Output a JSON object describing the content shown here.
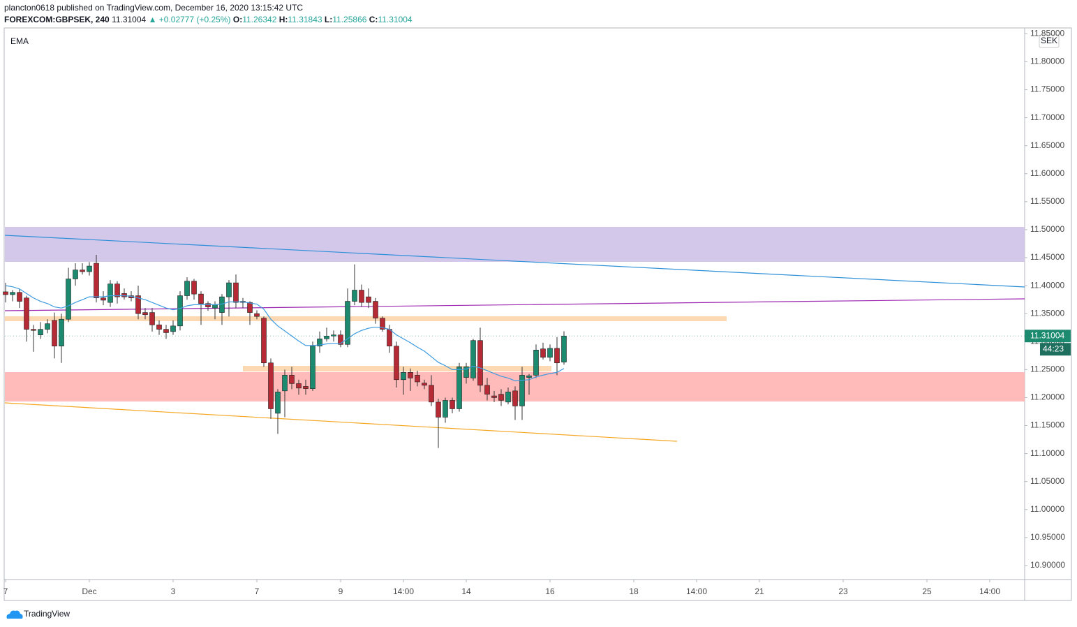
{
  "header": {
    "published": "plancton0618 published on TradingView.com, December 16, 2020 13:15:42 UTC",
    "symbol": "FOREXCOM:GBPSEK, 240",
    "change": "▲ +0.02777 (+0.25%)",
    "o": "O:",
    "h": "H:",
    "l": "L:",
    "c": "C:"
  },
  "indicator": "EMA",
  "currency": "SEK",
  "countdown": "44:23",
  "brand": "TradingView",
  "chart_data": {
    "type": "candlestick",
    "up_color": "#1b8a6f",
    "down_color": "#b52a34",
    "ema_color": "#3d9be0",
    "ylim": [
      10.875,
      11.8604
    ],
    "yticks": [
      {
        "value": 11.85,
        "label": "11.85000"
      },
      {
        "value": 11.8,
        "label": "11.80000"
      },
      {
        "value": 11.75,
        "label": "11.75000"
      },
      {
        "value": 11.7,
        "label": "11.70000"
      },
      {
        "value": 11.65,
        "label": "11.65000"
      },
      {
        "value": 11.6,
        "label": "11.60000"
      },
      {
        "value": 11.55,
        "label": "11.55000"
      },
      {
        "value": 11.5,
        "label": "11.50000"
      },
      {
        "value": 11.45,
        "label": "11.45000"
      },
      {
        "value": 11.4,
        "label": "11.40000"
      },
      {
        "value": 11.35,
        "label": "11.35000"
      },
      {
        "value": 11.3,
        "label": "11.30000"
      },
      {
        "value": 11.25,
        "label": "11.25000"
      },
      {
        "value": 11.2,
        "label": "11.20000"
      },
      {
        "value": 11.15,
        "label": "11.15000"
      },
      {
        "value": 11.1,
        "label": "11.10000"
      },
      {
        "value": 11.05,
        "label": "11.05000"
      },
      {
        "value": 11,
        "label": "11.00000"
      },
      {
        "value": 10.95,
        "label": "10.95000"
      },
      {
        "value": 10.9,
        "label": "10.90000"
      }
    ],
    "categories": [
      "7",
      null,
      null,
      null,
      null,
      null,
      null,
      null,
      null,
      null,
      null,
      null,
      "Dec",
      null,
      null,
      null,
      null,
      null,
      null,
      null,
      null,
      null,
      null,
      null,
      "3",
      null,
      null,
      null,
      null,
      null,
      null,
      null,
      null,
      null,
      null,
      null,
      "7",
      null,
      null,
      null,
      null,
      null,
      null,
      null,
      null,
      null,
      null,
      null,
      "9",
      null,
      null,
      null,
      null,
      null,
      null,
      null,
      null,
      "14:00",
      null,
      null,
      null,
      null,
      null,
      null,
      null,
      null,
      "14",
      null,
      null,
      null,
      null,
      null,
      null,
      null,
      null,
      null,
      null,
      null,
      "16",
      null,
      null,
      null,
      null,
      null,
      null,
      null,
      null,
      null,
      null,
      null,
      "18",
      null,
      null,
      null,
      null,
      null,
      null,
      null,
      null,
      "14:00",
      null,
      null,
      null,
      null,
      null,
      null,
      null,
      null,
      "21",
      null,
      null,
      null,
      null,
      null,
      null,
      null,
      null,
      null,
      null,
      null,
      "23",
      null,
      null,
      null,
      null,
      null,
      null,
      null,
      null,
      null,
      null,
      null,
      "25",
      null,
      null,
      null,
      null,
      null,
      null,
      null,
      null,
      "14:00",
      null,
      null,
      null,
      null
    ],
    "open": [
      11.389,
      11.384,
      11.388,
      11.378,
      11.322,
      11.312,
      11.322,
      11.338,
      11.292,
      11.34,
      11.412,
      11.428,
      11.425,
      11.44,
      11.378,
      11.37,
      11.403,
      11.386,
      11.382,
      11.382,
      11.352,
      11.352,
      11.33,
      11.322,
      11.318,
      11.328,
      11.382,
      11.408,
      11.385,
      11.368,
      11.36,
      11.352,
      11.38,
      11.405,
      11.372,
      11.37,
      11.35,
      11.342,
      11.262,
      11.172,
      11.212,
      11.24,
      11.225,
      11.22,
      11.216,
      11.292,
      11.305,
      11.31,
      11.312,
      11.295,
      11.372,
      11.392,
      11.38,
      11.372,
      11.342,
      11.322,
      11.292,
      11.232,
      11.245,
      11.24,
      11.226,
      11.222,
      11.192,
      11.165,
      11.195,
      11.18,
      11.236,
      11.235,
      11.302,
      11.222,
      11.203,
      11.206,
      11.192,
      11.212,
      11.185,
      11.236,
      11.24,
      11.287,
      11.272,
      11.288,
      11.26342,
      null,
      null,
      null,
      null,
      null,
      null,
      null,
      null,
      null,
      null,
      null,
      null,
      null,
      null,
      null,
      null,
      null,
      null,
      null,
      null,
      null,
      null,
      null,
      null,
      null,
      null,
      null,
      null,
      null,
      null,
      null,
      null,
      null,
      null,
      null,
      null,
      null,
      null,
      null,
      null,
      null,
      null,
      null,
      null,
      null,
      null,
      null,
      null,
      null,
      null,
      null,
      null,
      null,
      null,
      null,
      null,
      null,
      null,
      null,
      null,
      null,
      null,
      null,
      null,
      null
    ],
    "high": [
      11.405,
      11.392,
      11.394,
      11.382,
      11.33,
      11.335,
      11.34,
      11.352,
      11.35,
      11.432,
      11.44,
      11.44,
      11.442,
      11.455,
      11.39,
      11.41,
      11.408,
      11.395,
      11.39,
      11.4,
      11.36,
      11.36,
      11.338,
      11.33,
      11.338,
      11.39,
      11.415,
      11.412,
      11.39,
      11.372,
      11.372,
      11.385,
      11.41,
      11.42,
      11.378,
      11.372,
      11.356,
      11.345,
      11.27,
      11.215,
      11.25,
      11.255,
      11.232,
      11.232,
      11.3,
      11.318,
      11.325,
      11.32,
      11.32,
      11.395,
      11.438,
      11.402,
      11.395,
      11.378,
      11.345,
      11.33,
      11.3,
      11.255,
      11.252,
      11.248,
      11.232,
      11.24,
      11.198,
      11.2,
      11.2,
      11.262,
      11.262,
      11.305,
      11.325,
      11.235,
      11.212,
      11.215,
      11.218,
      11.22,
      11.255,
      11.242,
      11.295,
      11.298,
      11.295,
      11.308,
      11.31843,
      null,
      null,
      null,
      null,
      null,
      null,
      null,
      null,
      null,
      null,
      null,
      null,
      null,
      null,
      null,
      null,
      null,
      null,
      null,
      null,
      null,
      null,
      null,
      null,
      null,
      null,
      null,
      null,
      null,
      null,
      null,
      null,
      null,
      null,
      null,
      null,
      null,
      null,
      null,
      null,
      null,
      null,
      null,
      null,
      null,
      null,
      null,
      null,
      null,
      null,
      null,
      null,
      null,
      null,
      null,
      null,
      null,
      null,
      null,
      null,
      null,
      null,
      null,
      null,
      null
    ],
    "low": [
      11.37,
      11.372,
      11.36,
      11.3,
      11.282,
      11.305,
      11.315,
      11.27,
      11.262,
      11.335,
      11.4,
      11.42,
      11.418,
      11.37,
      11.365,
      11.362,
      11.368,
      11.375,
      11.372,
      11.34,
      11.34,
      11.318,
      11.312,
      11.305,
      11.312,
      11.32,
      11.375,
      11.375,
      11.33,
      11.355,
      11.34,
      11.33,
      11.345,
      11.36,
      11.36,
      11.33,
      11.34,
      11.255,
      11.162,
      11.135,
      11.165,
      11.215,
      11.205,
      11.205,
      11.212,
      11.28,
      11.3,
      11.3,
      11.29,
      11.29,
      11.365,
      11.362,
      11.36,
      11.332,
      11.318,
      11.28,
      11.218,
      11.205,
      11.212,
      11.22,
      11.215,
      11.185,
      11.11,
      11.155,
      11.172,
      11.175,
      11.225,
      11.23,
      11.21,
      11.195,
      11.192,
      11.185,
      11.188,
      11.16,
      11.16,
      11.205,
      11.235,
      11.268,
      11.265,
      11.24,
      11.25866,
      null,
      null,
      null,
      null,
      null,
      null,
      null,
      null,
      null,
      null,
      null,
      null,
      null,
      null,
      null,
      null,
      null,
      null,
      null,
      null,
      null,
      null,
      null,
      null,
      null,
      null,
      null,
      null,
      null,
      null,
      null,
      null,
      null,
      null,
      null,
      null,
      null,
      null,
      null,
      null,
      null,
      null,
      null,
      null,
      null,
      null,
      null,
      null,
      null,
      null,
      null,
      null,
      null,
      null,
      null,
      null,
      null,
      null,
      null,
      null,
      null,
      null,
      null,
      null,
      null
    ],
    "close": [
      11.384,
      11.388,
      11.372,
      11.322,
      11.32,
      11.322,
      11.332,
      11.292,
      11.34,
      11.412,
      11.428,
      11.425,
      11.435,
      11.378,
      11.374,
      11.403,
      11.38,
      11.38,
      11.378,
      11.35,
      11.348,
      11.33,
      11.322,
      11.316,
      11.328,
      11.382,
      11.408,
      11.385,
      11.368,
      11.362,
      11.366,
      11.38,
      11.405,
      11.37,
      11.37,
      11.352,
      11.345,
      11.262,
      11.18,
      11.21,
      11.24,
      11.225,
      11.217,
      11.216,
      11.292,
      11.305,
      11.31,
      11.312,
      11.295,
      11.372,
      11.392,
      11.37,
      11.37,
      11.342,
      11.322,
      11.292,
      11.232,
      11.245,
      11.235,
      11.228,
      11.222,
      11.192,
      11.165,
      11.195,
      11.18,
      11.255,
      11.255,
      11.302,
      11.222,
      11.206,
      11.2,
      11.195,
      11.21,
      11.185,
      11.24,
      11.239,
      11.285,
      11.272,
      11.288,
      11.262,
      11.31004,
      null,
      null,
      null,
      null,
      null,
      null,
      null,
      null,
      null,
      null,
      null,
      null,
      null,
      null,
      null,
      null,
      null,
      null,
      null,
      null,
      null,
      null,
      null,
      null,
      null,
      null,
      null,
      null,
      null,
      null,
      null,
      null,
      null,
      null,
      null,
      null,
      null,
      null,
      null,
      null,
      null,
      null,
      null,
      null,
      null,
      null,
      null,
      null,
      null,
      null,
      null,
      null,
      null,
      null,
      null,
      null,
      null,
      null,
      null,
      null,
      null,
      null,
      null,
      null,
      null
    ],
    "ema": [
      11.4,
      11.398,
      11.394,
      11.386,
      11.378,
      11.372,
      11.368,
      11.362,
      11.36,
      11.364,
      11.37,
      11.375,
      11.38,
      11.38,
      11.38,
      11.382,
      11.382,
      11.382,
      11.381,
      11.378,
      11.375,
      11.37,
      11.365,
      11.36,
      11.357,
      11.359,
      11.364,
      11.366,
      11.366,
      11.366,
      11.366,
      11.367,
      11.371,
      11.371,
      11.371,
      11.369,
      11.367,
      11.358,
      11.34,
      11.328,
      11.319,
      11.31,
      11.301,
      11.293,
      11.293,
      11.294,
      11.296,
      11.297,
      11.297,
      11.305,
      11.314,
      11.32,
      11.324,
      11.326,
      11.325,
      11.322,
      11.312,
      11.305,
      11.298,
      11.29,
      11.283,
      11.273,
      11.263,
      11.257,
      11.25,
      11.25,
      11.251,
      11.256,
      11.253,
      11.248,
      11.243,
      11.238,
      11.235,
      11.23,
      11.231,
      11.232,
      11.237,
      11.24,
      11.243,
      11.245,
      11.252,
      null,
      null,
      null,
      null,
      null,
      null,
      null,
      null,
      null,
      null,
      null,
      null,
      null,
      null,
      null,
      null,
      null,
      null,
      null,
      null,
      null,
      null,
      null,
      null,
      null,
      null,
      null,
      null,
      null,
      null,
      null,
      null,
      null,
      null,
      null,
      null,
      null,
      null,
      null,
      null,
      null,
      null,
      null,
      null,
      null,
      null,
      null,
      null,
      null,
      null,
      null,
      null,
      null,
      null,
      null,
      null,
      null,
      null,
      null,
      null,
      null,
      null,
      null,
      null,
      null
    ]
  }
}
